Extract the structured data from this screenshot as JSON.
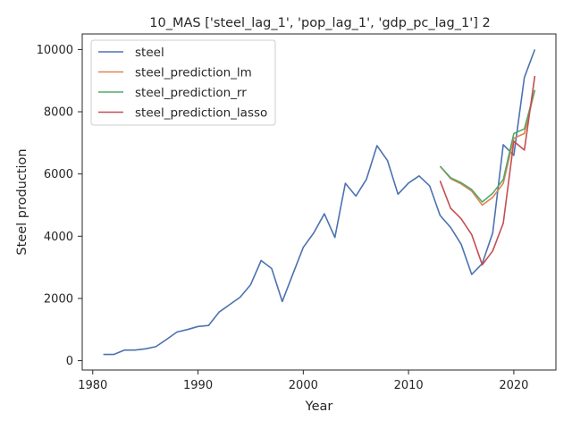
{
  "chart_data": {
    "type": "line",
    "title": "10_MAS ['steel_lag_1', 'pop_lag_1', 'gdp_pc_lag_1'] 2",
    "xlabel": "Year",
    "ylabel": "Steel production",
    "xlim": [
      1979,
      2024
    ],
    "ylim": [
      -300,
      10500
    ],
    "xticks": [
      1980,
      1990,
      2000,
      2010,
      2020
    ],
    "xtick_labels": [
      "1980",
      "1990",
      "2000",
      "2010",
      "2020"
    ],
    "yticks": [
      0,
      2000,
      4000,
      6000,
      8000,
      10000
    ],
    "ytick_labels": [
      "0",
      "2000",
      "4000",
      "6000",
      "8000",
      "10000"
    ],
    "grid": false,
    "legend_position": "top-left",
    "series": [
      {
        "name": "steel",
        "color": "#4c72b0",
        "x": [
          1981,
          1982,
          1983,
          1984,
          1985,
          1986,
          1987,
          1988,
          1989,
          1990,
          1991,
          1992,
          1993,
          1994,
          1995,
          1996,
          1997,
          1998,
          1999,
          2000,
          2001,
          2002,
          2003,
          2004,
          2005,
          2006,
          2007,
          2008,
          2009,
          2010,
          2011,
          2012,
          2013,
          2014,
          2015,
          2016,
          2017,
          2018,
          2019,
          2020,
          2021,
          2022
        ],
        "y": [
          200,
          200,
          340,
          340,
          380,
          450,
          680,
          920,
          1000,
          1100,
          1130,
          1560,
          1800,
          2040,
          2440,
          3220,
          2960,
          1900,
          2780,
          3640,
          4110,
          4720,
          3960,
          5700,
          5290,
          5830,
          6910,
          6430,
          5350,
          5710,
          5940,
          5620,
          4670,
          4280,
          3740,
          2770,
          3120,
          4110,
          6940,
          6600,
          9100,
          10000
        ]
      },
      {
        "name": "steel_prediction_lm",
        "color": "#dd8452",
        "x": [
          2013,
          2014,
          2015,
          2016,
          2017,
          2018,
          2019,
          2020,
          2021,
          2022
        ],
        "y": [
          6250,
          5850,
          5680,
          5450,
          5000,
          5250,
          5700,
          7150,
          7300,
          8700
        ]
      },
      {
        "name": "steel_prediction_rr",
        "color": "#55a868",
        "x": [
          2013,
          2014,
          2015,
          2016,
          2017,
          2018,
          2019,
          2020,
          2021,
          2022
        ],
        "y": [
          6250,
          5880,
          5720,
          5500,
          5100,
          5380,
          5820,
          7300,
          7450,
          8700
        ]
      },
      {
        "name": "steel_prediction_lasso",
        "color": "#c44e52",
        "x": [
          2013,
          2014,
          2015,
          2016,
          2017,
          2018,
          2019,
          2020,
          2021,
          2022
        ],
        "y": [
          5780,
          4900,
          4560,
          4050,
          3080,
          3530,
          4420,
          7050,
          6770,
          9150
        ]
      }
    ]
  }
}
